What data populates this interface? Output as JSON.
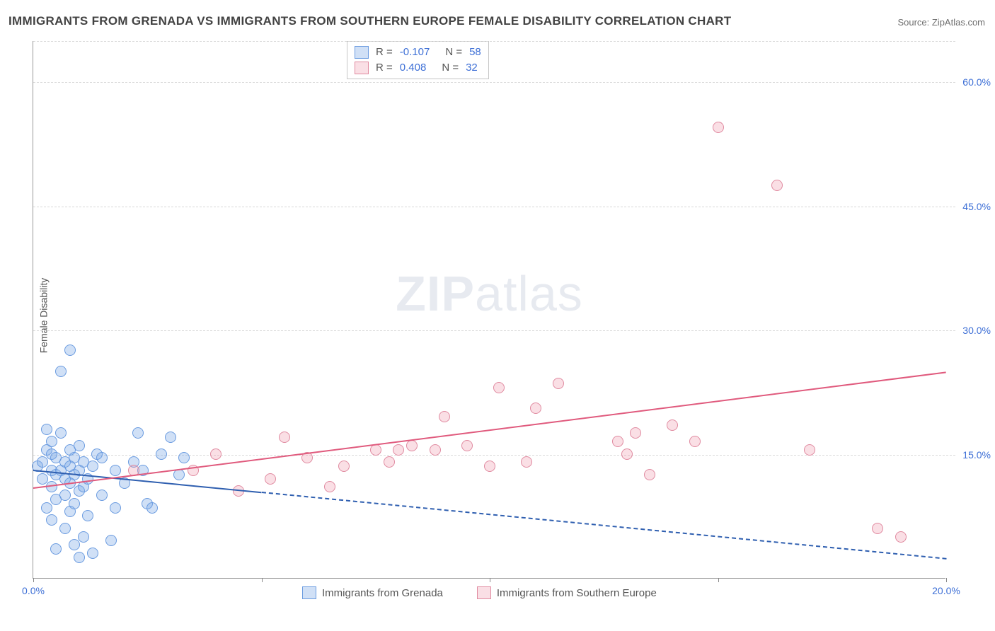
{
  "title": "IMMIGRANTS FROM GRENADA VS IMMIGRANTS FROM SOUTHERN EUROPE FEMALE DISABILITY CORRELATION CHART",
  "source": "Source: ZipAtlas.com",
  "ylabel": "Female Disability",
  "watermark_bold": "ZIP",
  "watermark_rest": "atlas",
  "chart": {
    "type": "scatter",
    "xlim": [
      0,
      20
    ],
    "ylim": [
      0,
      65
    ],
    "xticks": [
      0,
      5,
      10,
      15,
      20
    ],
    "xticklabels": [
      "0.0%",
      "",
      "",
      "",
      "20.0%"
    ],
    "yticks": [
      15,
      30,
      45,
      60
    ],
    "yticklabels": [
      "15.0%",
      "30.0%",
      "45.0%",
      "60.0%"
    ],
    "background_color": "#ffffff",
    "grid_color": "#d9d9d9",
    "series": [
      {
        "name": "Immigrants from Grenada",
        "color_fill": "rgba(120,165,230,0.35)",
        "color_stroke": "#6a9be0",
        "r_value": "-0.107",
        "n_value": "58",
        "trend": {
          "x0": 0,
          "y0": 13.2,
          "x1": 20,
          "y1": 2.5,
          "solid_until_x": 5,
          "color": "#2f5fb0"
        },
        "points": [
          [
            0.1,
            13.5
          ],
          [
            0.2,
            12.0
          ],
          [
            0.2,
            14.0
          ],
          [
            0.3,
            8.5
          ],
          [
            0.3,
            15.5
          ],
          [
            0.3,
            18.0
          ],
          [
            0.4,
            7.0
          ],
          [
            0.4,
            11.0
          ],
          [
            0.4,
            13.0
          ],
          [
            0.4,
            15.0
          ],
          [
            0.4,
            16.5
          ],
          [
            0.5,
            3.5
          ],
          [
            0.5,
            9.5
          ],
          [
            0.5,
            12.5
          ],
          [
            0.5,
            14.5
          ],
          [
            0.6,
            13.0
          ],
          [
            0.6,
            17.5
          ],
          [
            0.6,
            25.0
          ],
          [
            0.7,
            6.0
          ],
          [
            0.7,
            10.0
          ],
          [
            0.7,
            12.0
          ],
          [
            0.7,
            14.0
          ],
          [
            0.8,
            8.0
          ],
          [
            0.8,
            11.5
          ],
          [
            0.8,
            13.5
          ],
          [
            0.8,
            15.5
          ],
          [
            0.8,
            27.5
          ],
          [
            0.9,
            4.0
          ],
          [
            0.9,
            9.0
          ],
          [
            0.9,
            12.5
          ],
          [
            0.9,
            14.5
          ],
          [
            1.0,
            2.5
          ],
          [
            1.0,
            10.5
          ],
          [
            1.0,
            13.0
          ],
          [
            1.0,
            16.0
          ],
          [
            1.1,
            5.0
          ],
          [
            1.1,
            11.0
          ],
          [
            1.1,
            14.0
          ],
          [
            1.2,
            7.5
          ],
          [
            1.2,
            12.0
          ],
          [
            1.3,
            3.0
          ],
          [
            1.3,
            13.5
          ],
          [
            1.4,
            15.0
          ],
          [
            1.5,
            10.0
          ],
          [
            1.5,
            14.5
          ],
          [
            1.7,
            4.5
          ],
          [
            1.8,
            13.0
          ],
          [
            1.8,
            8.5
          ],
          [
            2.0,
            11.5
          ],
          [
            2.2,
            14.0
          ],
          [
            2.3,
            17.5
          ],
          [
            2.4,
            13.0
          ],
          [
            2.5,
            9.0
          ],
          [
            2.6,
            8.5
          ],
          [
            2.8,
            15.0
          ],
          [
            3.0,
            17.0
          ],
          [
            3.2,
            12.5
          ],
          [
            3.3,
            14.5
          ]
        ]
      },
      {
        "name": "Immigrants from Southern Europe",
        "color_fill": "rgba(240,150,170,0.30)",
        "color_stroke": "#e08aa0",
        "r_value": "0.408",
        "n_value": "32",
        "trend": {
          "x0": 0,
          "y0": 11.0,
          "x1": 20,
          "y1": 25.0,
          "solid_until_x": 20,
          "color": "#e05a7d"
        },
        "points": [
          [
            2.2,
            13.0
          ],
          [
            3.5,
            13.0
          ],
          [
            4.0,
            15.0
          ],
          [
            4.5,
            10.5
          ],
          [
            5.2,
            12.0
          ],
          [
            5.5,
            17.0
          ],
          [
            6.0,
            14.5
          ],
          [
            6.5,
            11.0
          ],
          [
            6.8,
            13.5
          ],
          [
            7.5,
            15.5
          ],
          [
            8.0,
            15.5
          ],
          [
            8.3,
            16.0
          ],
          [
            8.8,
            15.5
          ],
          [
            9.0,
            19.5
          ],
          [
            9.5,
            16.0
          ],
          [
            10.0,
            13.5
          ],
          [
            10.2,
            23.0
          ],
          [
            10.8,
            14.0
          ],
          [
            11.0,
            20.5
          ],
          [
            11.5,
            23.5
          ],
          [
            12.8,
            16.5
          ],
          [
            13.0,
            15.0
          ],
          [
            13.5,
            12.5
          ],
          [
            14.0,
            18.5
          ],
          [
            14.5,
            16.5
          ],
          [
            15.0,
            54.5
          ],
          [
            16.3,
            47.5
          ],
          [
            17.0,
            15.5
          ],
          [
            18.5,
            6.0
          ],
          [
            19.0,
            5.0
          ],
          [
            13.2,
            17.5
          ],
          [
            7.8,
            14.0
          ]
        ]
      }
    ]
  },
  "legend_bottom": {
    "item1_label": "Immigrants from Grenada",
    "item2_label": "Immigrants from Southern Europe"
  },
  "legend_top": {
    "r_label": "R =",
    "n_label": "N ="
  }
}
